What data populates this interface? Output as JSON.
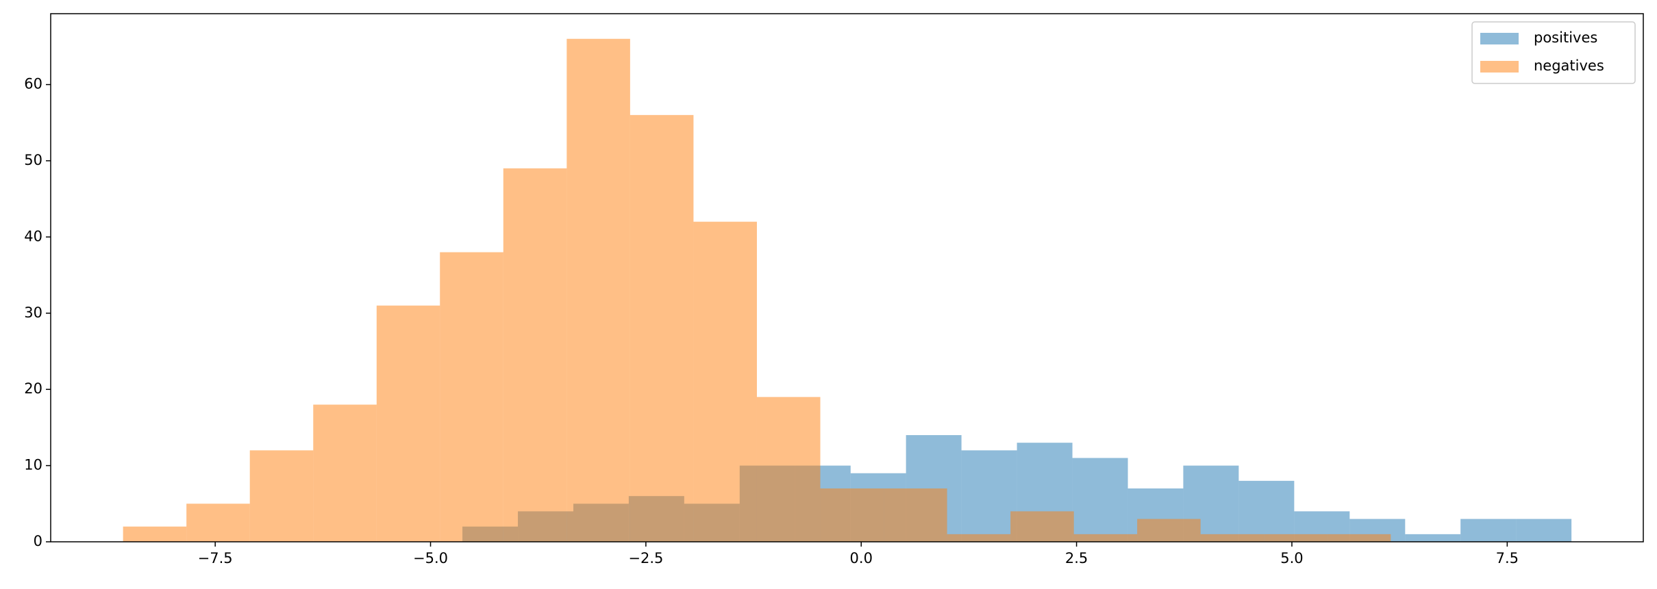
{
  "chart_data": {
    "type": "histogram",
    "series": [
      {
        "name": "positives",
        "color": "#1f77b4",
        "bins": [
          -4.63,
          -3.986,
          -3.342,
          -2.699,
          -2.055,
          -1.411,
          -0.767,
          -0.123,
          0.52,
          1.164,
          1.808,
          2.452,
          3.096,
          3.739,
          4.383,
          5.027,
          5.671,
          6.315,
          6.958,
          7.602,
          8.246
        ],
        "values": [
          2,
          4,
          5,
          6,
          5,
          10,
          10,
          9,
          14,
          12,
          13,
          11,
          7,
          10,
          8,
          4,
          3,
          1,
          3,
          3
        ]
      },
      {
        "name": "negatives",
        "color": "#ff7f0e",
        "bins": [
          -8.57,
          -7.834,
          -7.098,
          -6.362,
          -5.626,
          -4.891,
          -4.155,
          -3.419,
          -2.683,
          -1.947,
          -1.211,
          -0.475,
          0.261,
          0.997,
          1.733,
          2.469,
          3.204,
          3.94,
          4.676,
          5.412,
          6.148
        ],
        "values": [
          2,
          5,
          12,
          18,
          31,
          38,
          49,
          66,
          56,
          42,
          19,
          7,
          7,
          1,
          4,
          1,
          3,
          1,
          1,
          1
        ]
      }
    ],
    "opacity": 0.5,
    "xlim": [
      -9.41,
      9.08
    ],
    "ylim": [
      0,
      69.3
    ],
    "xticks": [
      {
        "value": -7.5,
        "label": "−7.5"
      },
      {
        "value": -5,
        "label": "−5.0"
      },
      {
        "value": -2.5,
        "label": "−2.5"
      },
      {
        "value": 0,
        "label": "0.0"
      },
      2.5,
      {
        "value": 5,
        "label": "5.0"
      },
      {
        "value": 7.5,
        "label": "7.5"
      }
    ],
    "yticks": [
      0,
      10,
      20,
      30,
      40,
      50,
      60
    ],
    "grid": false,
    "legend": "upper right"
  }
}
